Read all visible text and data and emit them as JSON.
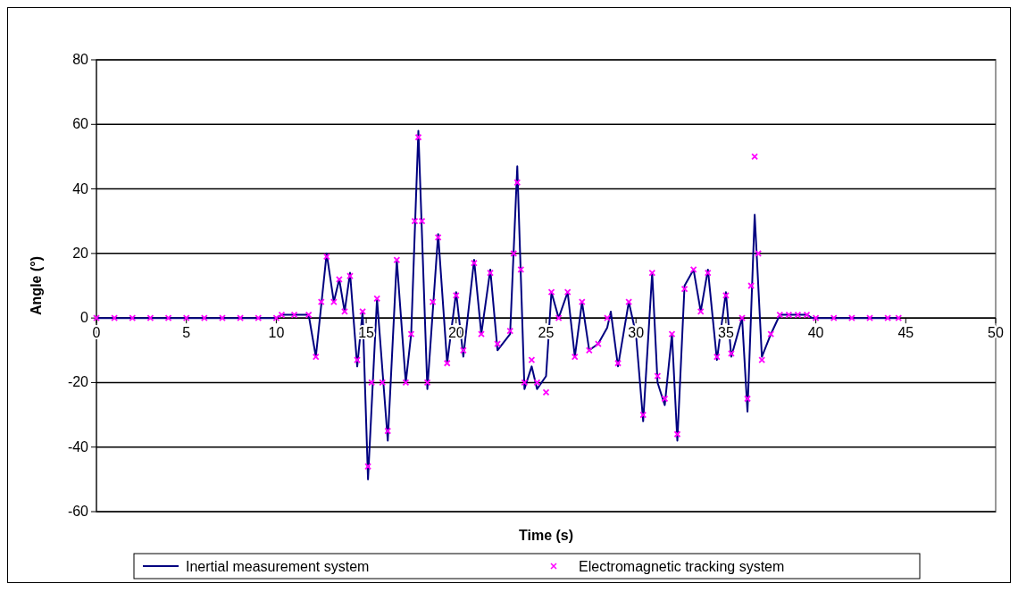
{
  "chart_data": {
    "type": "line",
    "xlabel": "Time (s)",
    "ylabel": "Angle (°)",
    "xlim": [
      0,
      50
    ],
    "ylim": [
      -60,
      80
    ],
    "xticks": [
      0,
      5,
      10,
      15,
      20,
      25,
      30,
      35,
      40,
      45,
      50
    ],
    "yticks": [
      -60,
      -40,
      -20,
      0,
      20,
      40,
      60,
      80
    ],
    "grid": "y",
    "legend": "bottom",
    "series": [
      {
        "name": "Inertial measurement system",
        "color": "#000080",
        "marker": "none",
        "x": [
          0,
          10,
          10.3,
          11.8,
          12.2,
          12.8,
          13.2,
          13.5,
          13.8,
          14.1,
          14.5,
          14.8,
          15.1,
          15.6,
          16.2,
          16.7,
          17.2,
          17.5,
          17.9,
          18.4,
          19.0,
          19.5,
          20.0,
          20.4,
          21.0,
          21.4,
          21.9,
          22.3,
          23.0,
          23.4,
          23.8,
          24.2,
          24.5,
          25.0,
          25.3,
          25.7,
          26.2,
          26.6,
          27.0,
          27.4,
          27.9,
          28.4,
          28.6,
          29.0,
          29.6,
          30.0,
          30.4,
          30.9,
          31.2,
          31.6,
          32.0,
          32.3,
          32.7,
          33.2,
          33.6,
          34.0,
          34.5,
          35.0,
          35.3,
          35.9,
          36.2,
          36.6,
          37.0,
          37.5,
          38.0,
          39.5,
          39.8,
          44.6
        ],
        "values": [
          0,
          0,
          1,
          1,
          -12,
          20,
          5,
          12,
          2,
          14,
          -15,
          2,
          -50,
          6,
          -38,
          18,
          -20,
          -5,
          58,
          -22,
          26,
          -14,
          8,
          -12,
          18,
          -5,
          15,
          -10,
          -5,
          47,
          -22,
          -15,
          -22,
          -18,
          8,
          0,
          8,
          -12,
          5,
          -10,
          -8,
          -3,
          2,
          -15,
          5,
          -5,
          -32,
          14,
          -20,
          -27,
          -5,
          -38,
          10,
          15,
          2,
          15,
          -13,
          8,
          -12,
          0,
          -29,
          32,
          -12,
          -5,
          1,
          1,
          0,
          0
        ]
      },
      {
        "name": "Electromagnetic tracking system",
        "type": "scatter",
        "color": "#ff00ff",
        "marker": "cross",
        "x": [
          0,
          1,
          2,
          3,
          4,
          5,
          6,
          7,
          8,
          9,
          10,
          10.3,
          11,
          11.8,
          12.2,
          12.5,
          12.8,
          13.2,
          13.5,
          13.8,
          14.1,
          14.5,
          14.8,
          15.1,
          15.3,
          15.6,
          15.9,
          16.2,
          16.7,
          17.2,
          17.5,
          17.7,
          17.9,
          18.1,
          18.4,
          18.7,
          19.0,
          19.5,
          20.0,
          20.4,
          21.0,
          21.4,
          21.9,
          22.3,
          23.0,
          23.2,
          23.4,
          23.6,
          23.8,
          24.2,
          24.5,
          25.0,
          25.3,
          25.7,
          26.2,
          26.6,
          27.0,
          27.4,
          27.9,
          28.4,
          29.0,
          29.6,
          30.4,
          30.9,
          31.2,
          31.6,
          32.0,
          32.3,
          32.7,
          33.2,
          33.6,
          34.0,
          34.5,
          35.0,
          35.3,
          35.9,
          36.2,
          36.4,
          36.6,
          36.8,
          37.0,
          37.5,
          38.0,
          38.5,
          39.0,
          39.5,
          40,
          41,
          42,
          43,
          44,
          44.6
        ],
        "values": [
          0,
          0,
          0,
          0,
          0,
          0,
          0,
          0,
          0,
          0,
          0,
          1,
          1,
          1,
          -12,
          5,
          19,
          5,
          12,
          2,
          13,
          -13,
          2,
          -46,
          -20,
          6,
          -20,
          -35,
          18,
          -20,
          -5,
          30,
          56,
          30,
          -20,
          5,
          25,
          -14,
          7,
          -10,
          17,
          -5,
          14,
          -8,
          -4,
          20,
          42,
          15,
          -20,
          -13,
          -20,
          -23,
          8,
          0,
          8,
          -12,
          5,
          -10,
          -8,
          0,
          -14,
          5,
          -30,
          14,
          -18,
          -25,
          -5,
          -36,
          9,
          15,
          2,
          14,
          -12,
          7,
          -11,
          0,
          -25,
          10,
          50,
          20,
          -13,
          -5,
          1,
          1,
          1,
          1,
          0,
          0,
          0,
          0,
          0,
          0
        ]
      }
    ]
  }
}
